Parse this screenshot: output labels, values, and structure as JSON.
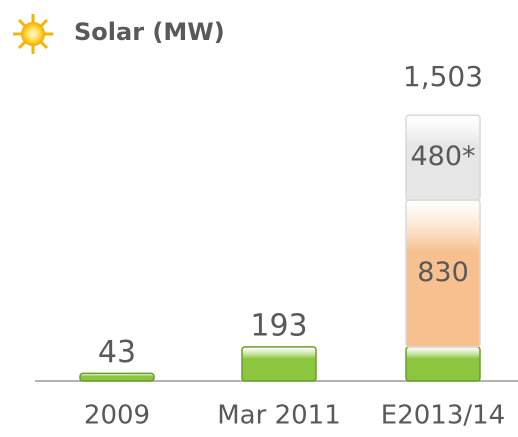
{
  "chart_data": {
    "type": "stacked_bar",
    "title": "Solar (MW)",
    "categories": [
      "2009",
      "Mar 2011",
      "E2013/14"
    ],
    "series": [
      {
        "color": "#8cc63e",
        "values": [
          43,
          193,
          193
        ],
        "value_labels": [
          "43",
          "193",
          null
        ]
      },
      {
        "color": "#f7c08e",
        "values": [
          null,
          null,
          830
        ],
        "value_labels": [
          null,
          null,
          "830"
        ]
      },
      {
        "color": "#e6e6e6",
        "values": [
          null,
          null,
          480
        ],
        "value_labels": [
          null,
          null,
          "480*"
        ]
      }
    ],
    "totals": [
      null,
      null,
      1503
    ],
    "total_labels": [
      null,
      null,
      "1,503"
    ],
    "ylim": [
      0,
      1600
    ]
  }
}
